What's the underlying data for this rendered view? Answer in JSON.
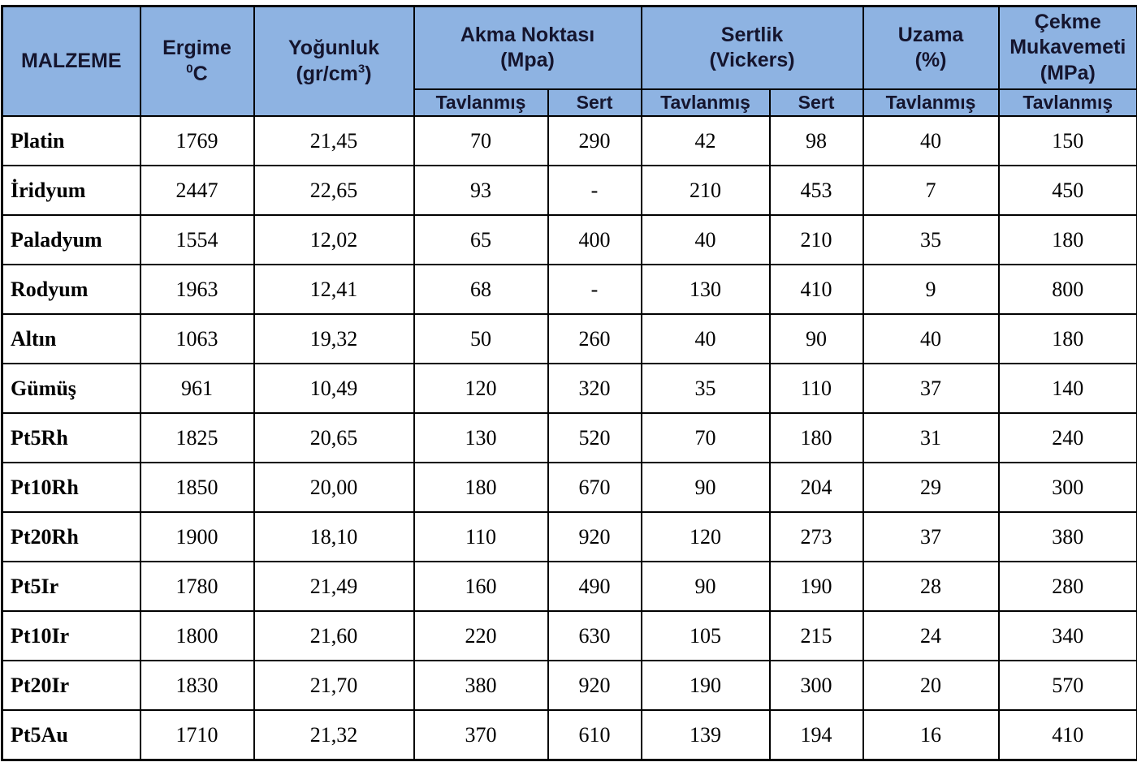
{
  "header": {
    "col_malzeme": "MALZEME",
    "col_ergime": {
      "title": "Ergime",
      "unit_sup": "0",
      "unit": "C"
    },
    "col_yogunluk": {
      "title": "Yoğunluk",
      "unit_prefix": "(gr/cm",
      "unit_sup": "3",
      "unit_suffix": ")"
    },
    "group_akma": {
      "line1": "Akma Noktası",
      "line2": "(Mpa)"
    },
    "group_sertlik": {
      "line1": "Sertlik",
      "line2": "(Vickers)"
    },
    "col_uzama": {
      "line1": "Uzama",
      "line2": "(%)"
    },
    "col_cekme": {
      "line1": "Çekme",
      "line2": "Mukavemeti",
      "line3": "(MPa)"
    },
    "sub": {
      "akma_tavlanmis": "Tavlanmış",
      "akma_sert": "Sert",
      "sertlik_tavlanmis": "Tavlanmış",
      "sertlik_sert": "Sert",
      "uzama_tavlanmis": "Tavlanmış",
      "cekme_tavlanmis": "Tavlanmış"
    }
  },
  "colors": {
    "header_bg": "#8EB3E2",
    "header_text": "#15152e",
    "border": "#000000",
    "cell_bg": "#FFFFFF",
    "cell_text": "#000000"
  },
  "rows": [
    {
      "name": "Platin",
      "ergime": "1769",
      "yogunluk": "21,45",
      "akma_tavlanmis": "70",
      "akma_sert": "290",
      "sertlik_tavlanmis": "42",
      "sertlik_sert": "98",
      "uzama": "40",
      "cekme": "150"
    },
    {
      "name": "İridyum",
      "ergime": "2447",
      "yogunluk": "22,65",
      "akma_tavlanmis": "93",
      "akma_sert": "-",
      "sertlik_tavlanmis": "210",
      "sertlik_sert": "453",
      "uzama": "7",
      "cekme": "450"
    },
    {
      "name": "Paladyum",
      "ergime": "1554",
      "yogunluk": "12,02",
      "akma_tavlanmis": "65",
      "akma_sert": "400",
      "sertlik_tavlanmis": "40",
      "sertlik_sert": "210",
      "uzama": "35",
      "cekme": "180"
    },
    {
      "name": "Rodyum",
      "ergime": "1963",
      "yogunluk": "12,41",
      "akma_tavlanmis": "68",
      "akma_sert": "-",
      "sertlik_tavlanmis": "130",
      "sertlik_sert": "410",
      "uzama": "9",
      "cekme": "800"
    },
    {
      "name": "Altın",
      "ergime": "1063",
      "yogunluk": "19,32",
      "akma_tavlanmis": "50",
      "akma_sert": "260",
      "sertlik_tavlanmis": "40",
      "sertlik_sert": "90",
      "uzama": "40",
      "cekme": "180"
    },
    {
      "name": "Gümüş",
      "ergime": "961",
      "yogunluk": "10,49",
      "akma_tavlanmis": "120",
      "akma_sert": "320",
      "sertlik_tavlanmis": "35",
      "sertlik_sert": "110",
      "uzama": "37",
      "cekme": "140"
    },
    {
      "name": "Pt5Rh",
      "ergime": "1825",
      "yogunluk": "20,65",
      "akma_tavlanmis": "130",
      "akma_sert": "520",
      "sertlik_tavlanmis": "70",
      "sertlik_sert": "180",
      "uzama": "31",
      "cekme": "240"
    },
    {
      "name": "Pt10Rh",
      "ergime": "1850",
      "yogunluk": "20,00",
      "akma_tavlanmis": "180",
      "akma_sert": "670",
      "sertlik_tavlanmis": "90",
      "sertlik_sert": "204",
      "uzama": "29",
      "cekme": "300"
    },
    {
      "name": "Pt20Rh",
      "ergime": "1900",
      "yogunluk": "18,10",
      "akma_tavlanmis": "110",
      "akma_sert": "920",
      "sertlik_tavlanmis": "120",
      "sertlik_sert": "273",
      "uzama": "37",
      "cekme": "380"
    },
    {
      "name": "Pt5Ir",
      "ergime": "1780",
      "yogunluk": "21,49",
      "akma_tavlanmis": "160",
      "akma_sert": "490",
      "sertlik_tavlanmis": "90",
      "sertlik_sert": "190",
      "uzama": "28",
      "cekme": "280"
    },
    {
      "name": "Pt10Ir",
      "ergime": "1800",
      "yogunluk": "21,60",
      "akma_tavlanmis": "220",
      "akma_sert": "630",
      "sertlik_tavlanmis": "105",
      "sertlik_sert": "215",
      "uzama": "24",
      "cekme": "340"
    },
    {
      "name": "Pt20Ir",
      "ergime": "1830",
      "yogunluk": "21,70",
      "akma_tavlanmis": "380",
      "akma_sert": "920",
      "sertlik_tavlanmis": "190",
      "sertlik_sert": "300",
      "uzama": "20",
      "cekme": "570"
    },
    {
      "name": "Pt5Au",
      "ergime": "1710",
      "yogunluk": "21,32",
      "akma_tavlanmis": "370",
      "akma_sert": "610",
      "sertlik_tavlanmis": "139",
      "sertlik_sert": "194",
      "uzama": "16",
      "cekme": "410"
    }
  ]
}
